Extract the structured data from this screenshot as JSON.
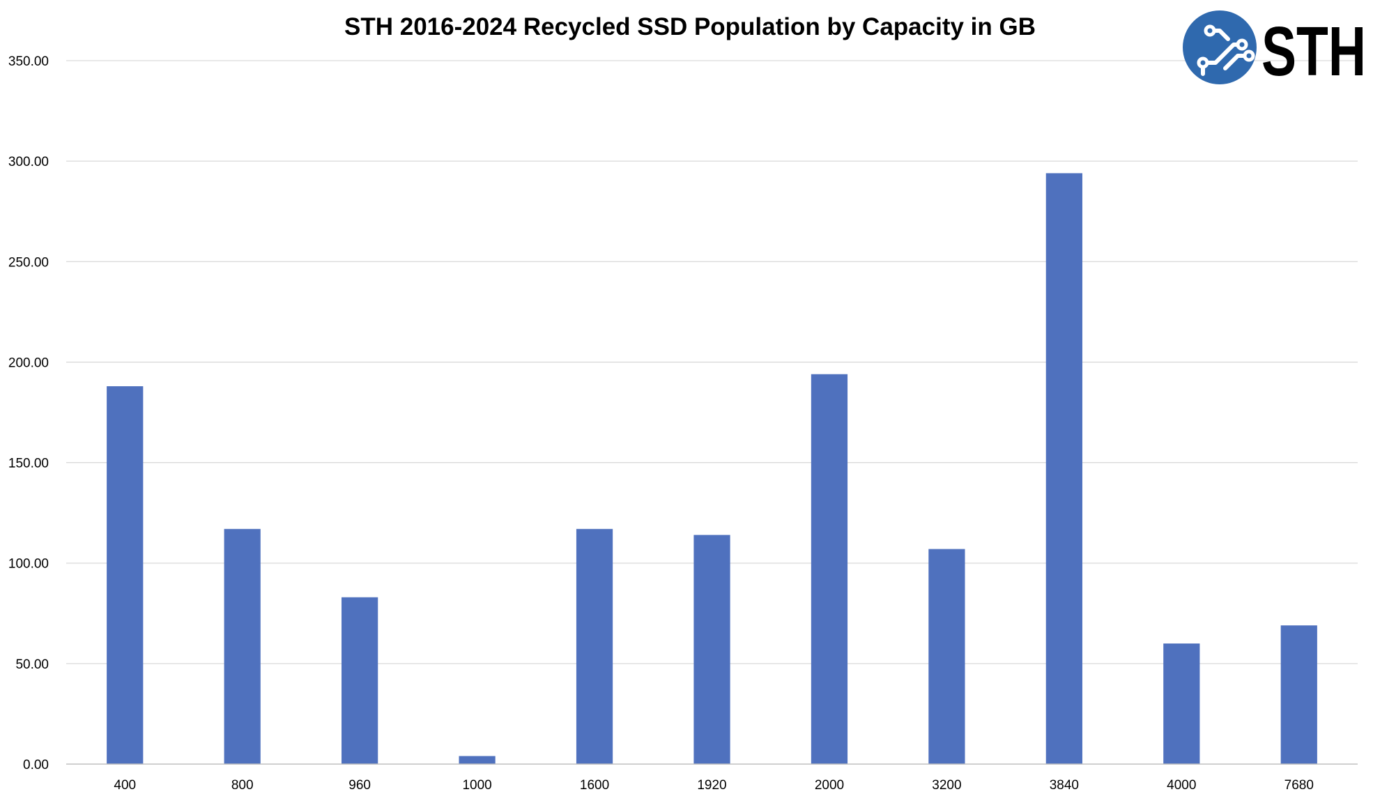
{
  "colors": {
    "bar": "#4F71BE",
    "logo_circle": "#2F69AE",
    "logo_text": "#000000"
  },
  "logo": {
    "text": "STH",
    "icon": "circuit-icon"
  },
  "chart_data": {
    "type": "bar",
    "title": "STH 2016-2024 Recycled SSD Population by Capacity in GB",
    "xlabel": "",
    "ylabel": "",
    "categories": [
      "400",
      "800",
      "960",
      "1000",
      "1600",
      "1920",
      "2000",
      "3200",
      "3840",
      "4000",
      "7680"
    ],
    "values": [
      188,
      117,
      83,
      4,
      117,
      114,
      194,
      107,
      294,
      60,
      69
    ],
    "ylim": [
      0,
      350
    ],
    "yticks": [
      "0.00",
      "50.00",
      "100.00",
      "150.00",
      "200.00",
      "250.00",
      "300.00",
      "350.00"
    ],
    "grid": true,
    "legend": "none"
  }
}
